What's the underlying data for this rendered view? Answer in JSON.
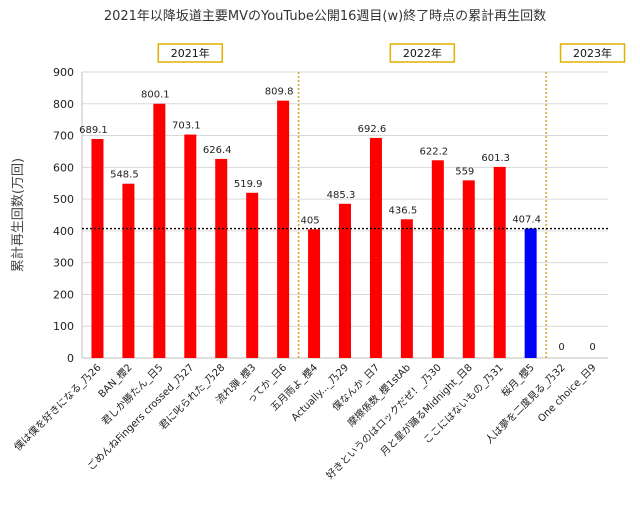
{
  "chart_data": {
    "type": "bar",
    "title": "2021年以降坂道主要MVのYouTube公開16週目(w)終了時点の累計再生回数",
    "ylabel": "累計再生回数(万回)",
    "xlabel": "",
    "ylim": [
      0,
      900
    ],
    "yticks": [
      0,
      100,
      200,
      300,
      400,
      500,
      600,
      700,
      800,
      900
    ],
    "grid": true,
    "reference_line": 407.4,
    "year_groups": [
      {
        "label": "2021年",
        "start": 0,
        "end": 6
      },
      {
        "label": "2022年",
        "start": 7,
        "end": 14
      },
      {
        "label": "2023年",
        "start": 15,
        "end": 17
      }
    ],
    "categories": [
      "僕は僕を好きになる_乃26",
      "BAN_櫻2",
      "君しか勝たん_日5",
      "ごめんねFingers crossed_乃27",
      "君に叱られた_乃28",
      "流れ弾_櫻3",
      "ってか_日6",
      "五月雨よ_櫻4",
      "Actually..._乃29",
      "僕なんか_日7",
      "摩擦係数_櫻1stAb",
      "好きというのはロックだぜ！_乃30",
      "月と星が踊るMidnight_日8",
      "ここにはないもの_乃31",
      "桜月_櫻5",
      "人は夢を二度見る_乃32",
      "One choice_日9"
    ],
    "values": [
      689.1,
      548.5,
      800.1,
      703.1,
      626.4,
      519.9,
      809.8,
      405,
      485.3,
      692.6,
      436.5,
      622.2,
      559,
      601.3,
      407.4,
      0,
      0
    ],
    "value_labels": [
      "689.1",
      "548.5",
      "800.1",
      "703.1",
      "626.4",
      "519.9",
      "809.8",
      "405",
      "485.3",
      "692.6",
      "436.5",
      "622.2",
      "559",
      "601.3",
      "407.4",
      "0",
      "0"
    ],
    "colors": [
      "#ff0000",
      "#ff0000",
      "#ff0000",
      "#ff0000",
      "#ff0000",
      "#ff0000",
      "#ff0000",
      "#ff0000",
      "#ff0000",
      "#ff0000",
      "#ff0000",
      "#ff0000",
      "#ff0000",
      "#ff0000",
      "#0000ff",
      "#ff0000",
      "#ff0000"
    ]
  }
}
